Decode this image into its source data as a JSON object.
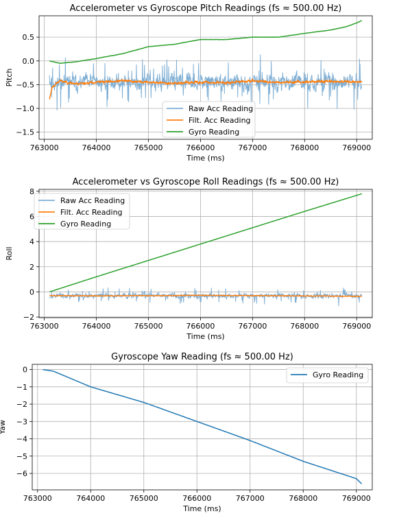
{
  "chart_data": [
    {
      "type": "line",
      "title": "Accelerometer vs Gyroscope Pitch Readings (fs ≈ 500.00 Hz)",
      "xlabel": "Time (ms)",
      "ylabel": "Pitch",
      "xlim": [
        762900,
        769300
      ],
      "ylim": [
        -1.65,
        0.95
      ],
      "xticks": [
        763000,
        764000,
        765000,
        766000,
        767000,
        768000,
        769000
      ],
      "yticks": [
        -1.5,
        -1.0,
        -0.5,
        0.0,
        0.5
      ],
      "ytick_labels": [
        "−1.5",
        "−1.0",
        "−0.5",
        "0.0",
        "0.5"
      ],
      "grid": true,
      "legend": "bottom-center",
      "legend_entries": [
        "Raw Acc Reading",
        "Filt. Acc Reading",
        "Gyro Reading"
      ],
      "series": [
        {
          "name": "Raw Acc Reading",
          "color": "#7eaed4",
          "noise": true,
          "spread": 0.45,
          "seed": 11,
          "x": [
            763100,
            769100
          ],
          "y": [
            -0.45,
            -0.45
          ]
        },
        {
          "name": "Filt. Acc Reading",
          "color": "#ff7f0e",
          "noise": true,
          "spread": 0.07,
          "seed": 23,
          "x": [
            763100,
            763150,
            763300,
            763600,
            764000,
            764500,
            765000,
            765500,
            766000,
            766500,
            767000,
            767500,
            768000,
            768500,
            769000,
            769100
          ],
          "y": [
            -0.8,
            -0.55,
            -0.42,
            -0.48,
            -0.45,
            -0.42,
            -0.45,
            -0.47,
            -0.45,
            -0.46,
            -0.42,
            -0.45,
            -0.44,
            -0.43,
            -0.45,
            -0.44
          ]
        },
        {
          "name": "Gyro Reading",
          "color": "#2ca02c",
          "noise": true,
          "spread": 0.008,
          "seed": 37,
          "x": [
            763100,
            763300,
            763600,
            764000,
            764500,
            765000,
            765500,
            766000,
            766500,
            767000,
            767500,
            768000,
            768500,
            768800,
            769000,
            769100
          ],
          "y": [
            0.0,
            -0.05,
            -0.02,
            0.05,
            0.15,
            0.3,
            0.35,
            0.45,
            0.45,
            0.5,
            0.5,
            0.58,
            0.65,
            0.72,
            0.8,
            0.85
          ]
        }
      ]
    },
    {
      "type": "line",
      "title": "Accelerometer vs Gyroscope Roll Readings (fs ≈ 500.00 Hz)",
      "xlabel": "Time (ms)",
      "ylabel": "Roll",
      "xlim": [
        762900,
        769300
      ],
      "ylim": [
        -2.05,
        8.15
      ],
      "xticks": [
        763000,
        764000,
        765000,
        766000,
        767000,
        768000,
        769000
      ],
      "yticks": [
        -2,
        0,
        2,
        4,
        6,
        8
      ],
      "ytick_labels": [
        "−2",
        "0",
        "2",
        "4",
        "6",
        "8"
      ],
      "grid": true,
      "legend": "top-left",
      "legend_entries": [
        "Raw Acc Reading",
        "Filt. Acc Reading",
        "Gyro Reading"
      ],
      "series": [
        {
          "name": "Raw Acc Reading",
          "color": "#7eaed4",
          "noise": true,
          "spread": 0.55,
          "seed": 53,
          "x": [
            763100,
            769100
          ],
          "y": [
            -0.3,
            -0.3
          ]
        },
        {
          "name": "Filt. Acc Reading",
          "color": "#ff7f0e",
          "noise": true,
          "spread": 0.06,
          "seed": 71,
          "x": [
            763100,
            764000,
            765000,
            766000,
            767000,
            768000,
            769100
          ],
          "y": [
            -0.3,
            -0.32,
            -0.3,
            -0.28,
            -0.3,
            -0.32,
            -0.35
          ]
        },
        {
          "name": "Gyro Reading",
          "color": "#2ca02c",
          "noise": true,
          "spread": 0.01,
          "seed": 89,
          "x": [
            763100,
            764000,
            765000,
            766000,
            767000,
            768000,
            769100
          ],
          "y": [
            0.0,
            1.2,
            2.5,
            3.8,
            5.1,
            6.4,
            7.8
          ]
        }
      ]
    },
    {
      "type": "line",
      "title": "Gyroscope Yaw Reading (fs ≈ 500.00 Hz)",
      "xlabel": "Time (ms)",
      "ylabel": "Yaw",
      "xlim": [
        762900,
        769300
      ],
      "ylim": [
        -6.95,
        0.3
      ],
      "xticks": [
        763000,
        764000,
        765000,
        766000,
        767000,
        768000,
        769000
      ],
      "yticks": [
        -6,
        -5,
        -4,
        -3,
        -2,
        -1,
        0
      ],
      "ytick_labels": [
        "−6",
        "−5",
        "−4",
        "−3",
        "−2",
        "−1",
        "0"
      ],
      "grid": true,
      "legend": "top-right",
      "legend_entries": [
        "Gyro Reading"
      ],
      "series": [
        {
          "name": "Gyro Reading",
          "color": "#1f77b4",
          "noise": true,
          "spread": 0.008,
          "seed": 97,
          "x": [
            763100,
            763300,
            764000,
            765000,
            766000,
            767000,
            768000,
            768500,
            769000,
            769100
          ],
          "y": [
            0.0,
            -0.1,
            -1.0,
            -1.9,
            -3.0,
            -4.1,
            -5.3,
            -5.8,
            -6.3,
            -6.6
          ]
        }
      ]
    }
  ]
}
